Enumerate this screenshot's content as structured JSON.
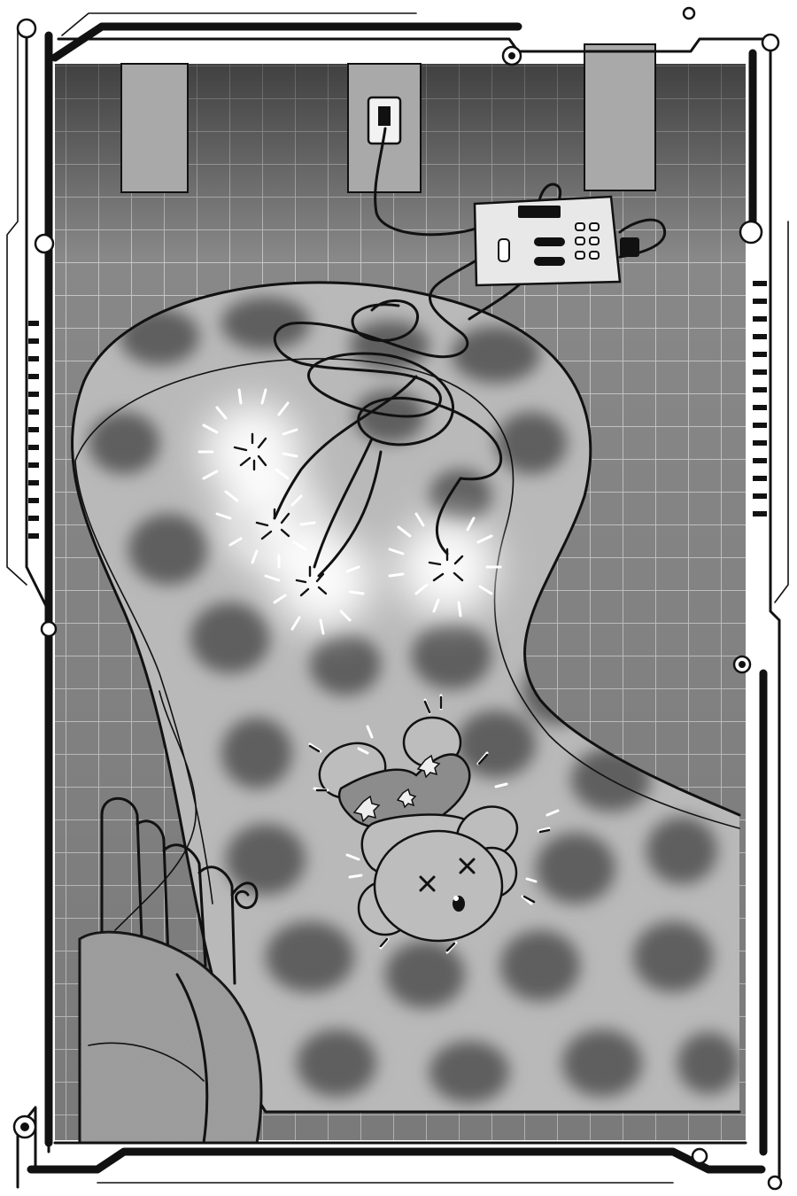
{
  "panel": {
    "style": "monochrome manga panel with sci-fi frame",
    "colors": {
      "ink": "#111111",
      "floor": "#8a8a8a",
      "tile_grid": "#c9c9c9",
      "rug": "#b8b8b8",
      "rug_spots": "#6b6b6b",
      "glow": "#ffffff"
    }
  },
  "objects": {
    "outlet": "wall-outlet-icon",
    "device": "power-strip-icon",
    "cable": "tangled-cable",
    "lights": "string-lights",
    "toy": "teddy-bear",
    "bed": "bed-corner"
  }
}
